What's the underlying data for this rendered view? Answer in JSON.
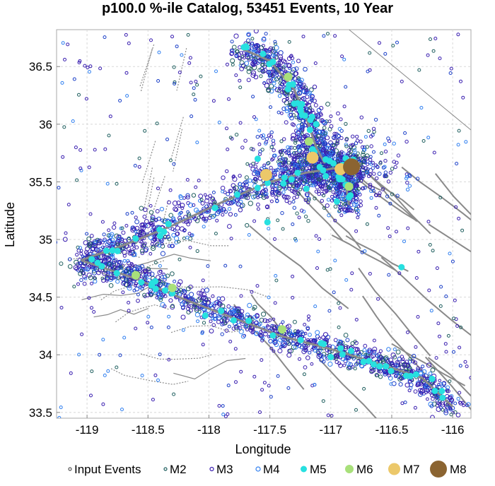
{
  "chart_data": {
    "type": "scatter",
    "title": "p100.0 %-ile Catalog, 53451 Events, 10 Year",
    "xlabel": "Longitude",
    "ylabel": "Latitude",
    "xlim": [
      -119.25,
      -115.85
    ],
    "ylim": [
      33.45,
      36.82
    ],
    "x_ticks": [
      -119,
      -118.5,
      -118,
      -117.5,
      -117,
      -116.5,
      -116
    ],
    "x_tick_labels": [
      "-119",
      "-118.5",
      "-118",
      "-117.5",
      "-117",
      "-116.5",
      "-116"
    ],
    "y_ticks": [
      33.5,
      34,
      34.5,
      35,
      35.5,
      36,
      36.5
    ],
    "y_tick_labels": [
      "33.5",
      "34",
      "34.5",
      "35",
      "35.5",
      "36",
      "36.5"
    ],
    "grid": true,
    "legend_position": "bottom",
    "legend": [
      {
        "label": "Input Events",
        "marker": "open-circle",
        "color": "#555555"
      },
      {
        "label": "M2",
        "marker": "open-circle",
        "color": "#1f5f5f"
      },
      {
        "label": "M3",
        "marker": "open-circle",
        "color": "#3a1fb0"
      },
      {
        "label": "M4",
        "marker": "open-circle",
        "color": "#2f7ff0"
      },
      {
        "label": "M5",
        "marker": "filled-circle",
        "color": "#27e0e0"
      },
      {
        "label": "M6",
        "marker": "filled-circle",
        "color": "#a8e07a"
      },
      {
        "label": "M7",
        "marker": "filled-circle",
        "color": "#ecc86a"
      },
      {
        "label": "M8",
        "marker": "filled-circle",
        "color": "#8b6431"
      }
    ],
    "main_trace": [
      [
        -119.05,
        34.82
      ],
      [
        -118.7,
        34.95
      ],
      [
        -118.3,
        35.12
      ],
      [
        -117.9,
        35.32
      ],
      [
        -117.5,
        35.5
      ],
      [
        -117.2,
        35.58
      ],
      [
        -116.95,
        35.62
      ],
      [
        -116.75,
        35.66
      ]
    ],
    "south_trace": [
      [
        -119.05,
        34.82
      ],
      [
        -118.6,
        34.66
      ],
      [
        -118.2,
        34.48
      ],
      [
        -117.8,
        34.32
      ],
      [
        -117.4,
        34.16
      ],
      [
        -117.0,
        34.05
      ],
      [
        -116.6,
        33.92
      ],
      [
        -116.25,
        33.8
      ],
      [
        -116.0,
        33.55
      ]
    ],
    "north_trace": [
      [
        -117.72,
        36.65
      ],
      [
        -117.5,
        36.55
      ],
      [
        -117.3,
        36.3
      ],
      [
        -117.2,
        36.05
      ],
      [
        -117.12,
        35.8
      ],
      [
        -117.05,
        35.66
      ]
    ],
    "branch_trace": [
      [
        -116.95,
        35.62
      ],
      [
        -116.88,
        35.5
      ],
      [
        -116.85,
        35.3
      ]
    ],
    "large_events": [
      {
        "class": "M8",
        "lon": -116.83,
        "lat": 35.63
      },
      {
        "class": "M7",
        "lon": -117.53,
        "lat": 35.56
      },
      {
        "class": "M7",
        "lon": -117.15,
        "lat": 35.71
      },
      {
        "class": "M7",
        "lon": -116.92,
        "lat": 35.61
      },
      {
        "class": "M6",
        "lon": -117.35,
        "lat": 36.41
      },
      {
        "class": "M6",
        "lon": -117.18,
        "lat": 35.85
      },
      {
        "class": "M6",
        "lon": -118.6,
        "lat": 34.69
      },
      {
        "class": "M6",
        "lon": -118.3,
        "lat": 34.58
      },
      {
        "class": "M6",
        "lon": -117.4,
        "lat": 34.22
      },
      {
        "class": "M6",
        "lon": -116.85,
        "lat": 35.46
      },
      {
        "class": "M5",
        "lon": -117.52,
        "lat": 35.15
      },
      {
        "class": "M5",
        "lon": -118.03,
        "lat": 34.34
      },
      {
        "class": "M5",
        "lon": -116.42,
        "lat": 34.76
      },
      {
        "class": "M5",
        "lon": -117.25,
        "lat": 36.14
      },
      {
        "class": "M5",
        "lon": -117.12,
        "lat": 36.0
      },
      {
        "class": "M5",
        "lon": -117.6,
        "lat": 35.7
      },
      {
        "class": "M5",
        "lon": -118.4,
        "lat": 35.03
      },
      {
        "class": "M5",
        "lon": -118.75,
        "lat": 34.9
      },
      {
        "class": "M5",
        "lon": -117.9,
        "lat": 34.38
      },
      {
        "class": "M5",
        "lon": -117.0,
        "lat": 33.98
      },
      {
        "class": "M5",
        "lon": -116.6,
        "lat": 33.9
      },
      {
        "class": "M5",
        "lon": -116.3,
        "lat": 33.83
      },
      {
        "class": "M5",
        "lon": -117.2,
        "lat": 35.44
      },
      {
        "class": "M5",
        "lon": -116.95,
        "lat": 35.33
      }
    ]
  }
}
